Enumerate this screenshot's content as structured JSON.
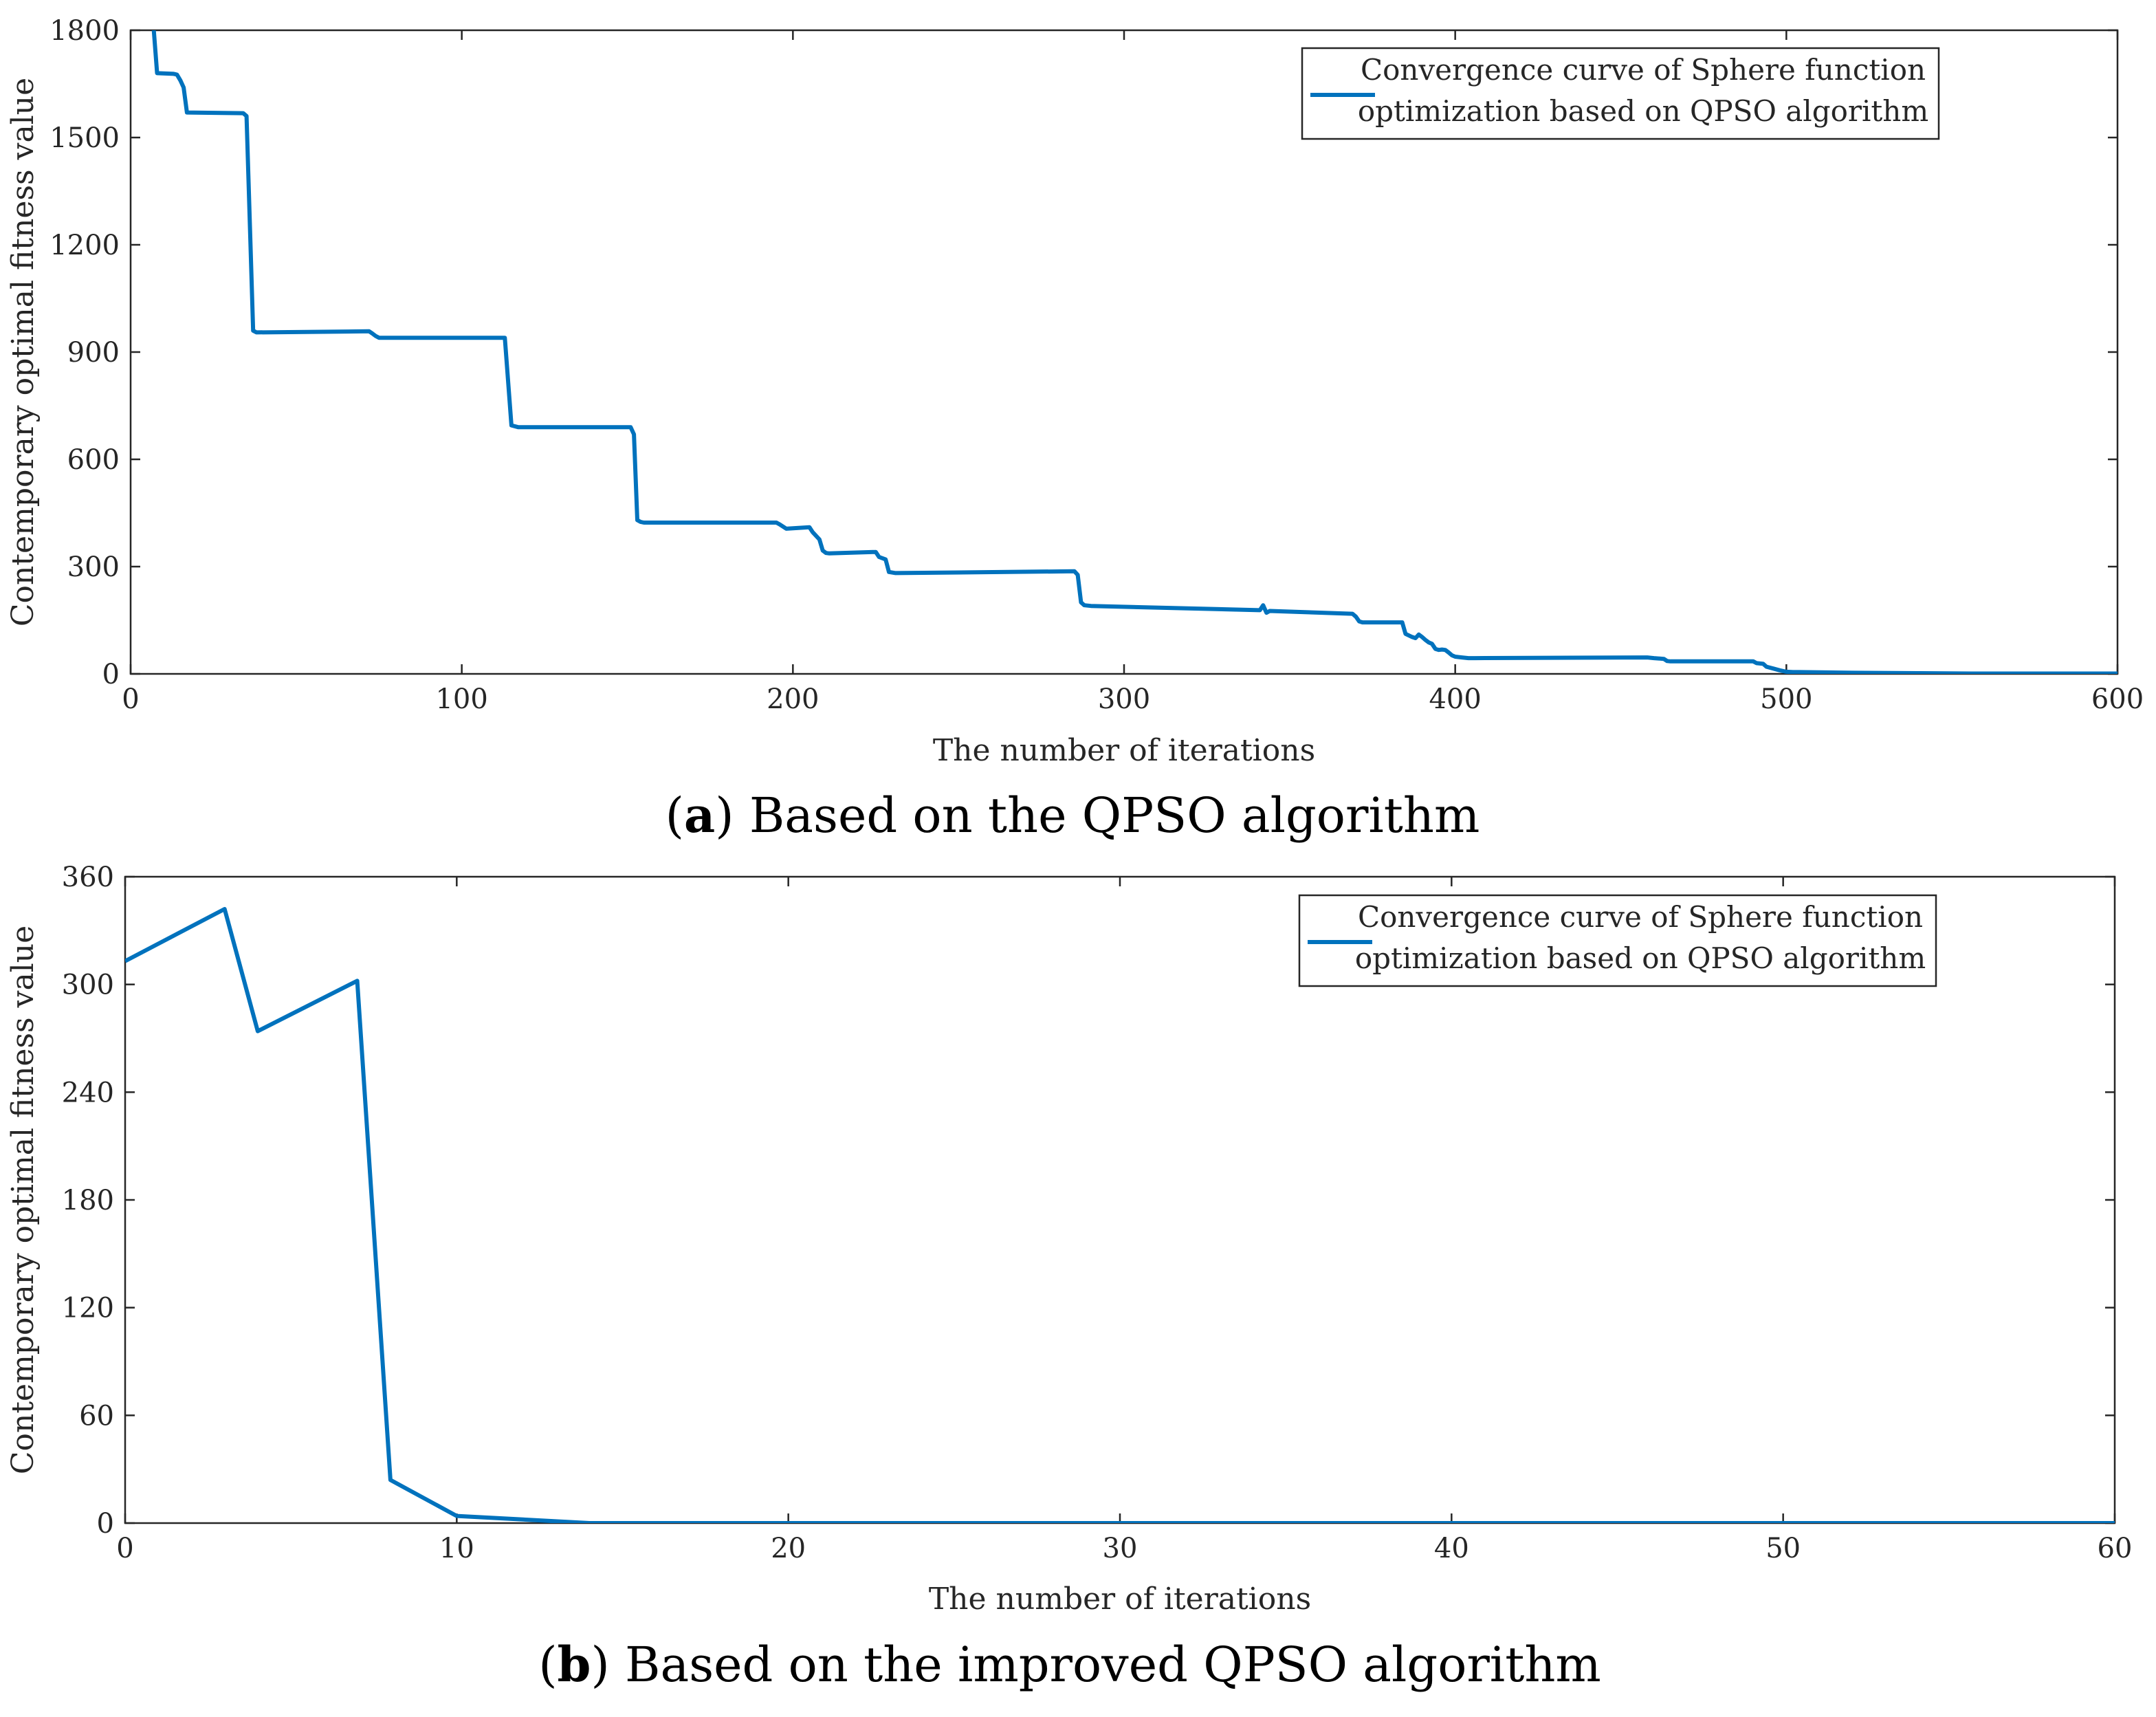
{
  "chart_data": [
    {
      "type": "line",
      "xlabel": "The number of iterations",
      "ylabel": "Contemporary optimal fitness value",
      "xlim": [
        0,
        600
      ],
      "ylim": [
        0,
        1800
      ],
      "xticks": [
        0,
        100,
        200,
        300,
        400,
        500,
        600
      ],
      "yticks": [
        0,
        300,
        600,
        900,
        1200,
        1500,
        1800
      ],
      "xtick_labels": [
        "0",
        "100",
        "200",
        "300",
        "400",
        "500",
        "600"
      ],
      "ytick_labels": [
        "0",
        "300",
        "600",
        "900",
        "1200",
        "1500",
        "1800"
      ],
      "legend_position": "top-right",
      "caption_letter": "a",
      "caption_text": ") Based on the QPSO algorithm",
      "caption_prefix": "(",
      "line_color": "#0072BD",
      "series": [
        {
          "name": "Convergence curve of Sphere function optimization based on QPSO algorithm",
          "legend_lines": [
            "Convergence curve of Sphere function",
            "optimization based on QPSO algorithm"
          ],
          "x": [
            7,
            8,
            13,
            14,
            15,
            16,
            17,
            34,
            35,
            37,
            38,
            72,
            73,
            74,
            75,
            113,
            115,
            117,
            151,
            152,
            153,
            154,
            155,
            195,
            196,
            197,
            198,
            205,
            206,
            208,
            209,
            210,
            211,
            225,
            226,
            228,
            229,
            231,
            285,
            286,
            287,
            288,
            290,
            341,
            342,
            343,
            344,
            369,
            370,
            371,
            372,
            384,
            385,
            387,
            388,
            389,
            390,
            391,
            392,
            393,
            394,
            395,
            396,
            397,
            398,
            399,
            400,
            402,
            404,
            406,
            458,
            460,
            463,
            464,
            465,
            490,
            491,
            493,
            494,
            496,
            498,
            500,
            502,
            504,
            520,
            540,
            556,
            570,
            600
          ],
          "y": [
            1800,
            1680,
            1678,
            1676,
            1660,
            1640,
            1570,
            1568,
            1560,
            960,
            955,
            958,
            952,
            945,
            940,
            940,
            695,
            690,
            690,
            670,
            430,
            425,
            423,
            423,
            418,
            412,
            406,
            410,
            396,
            376,
            345,
            338,
            337,
            341,
            327,
            320,
            285,
            282,
            287,
            277,
            200,
            192,
            190,
            178,
            192,
            171,
            176,
            168,
            160,
            147,
            144,
            144,
            112,
            103,
            100,
            110,
            103,
            95,
            88,
            84,
            70,
            67,
            68,
            67,
            60,
            52,
            48,
            46,
            44,
            44,
            46,
            44,
            42,
            36,
            35,
            35,
            30,
            28,
            20,
            15,
            10,
            6,
            5,
            5,
            3,
            2,
            1,
            1,
            1
          ]
        }
      ]
    },
    {
      "type": "line",
      "xlabel": "The number of iterations",
      "ylabel": "Contemporary optimal fitness value",
      "xlim": [
        0,
        60
      ],
      "ylim": [
        0,
        360
      ],
      "xticks": [
        0,
        10,
        20,
        30,
        40,
        50,
        60
      ],
      "yticks": [
        0,
        60,
        120,
        180,
        240,
        300,
        360
      ],
      "xtick_labels": [
        "0",
        "10",
        "20",
        "30",
        "40",
        "50",
        "60"
      ],
      "ytick_labels": [
        "0",
        "60",
        "120",
        "180",
        "240",
        "300",
        "360"
      ],
      "legend_position": "top-right",
      "caption_letter": "b",
      "caption_text": ") Based on the improved QPSO algorithm",
      "caption_prefix": "(",
      "line_color": "#0072BD",
      "series": [
        {
          "name": "Convergence curve of Sphere function optimization based on QPSO algorithm",
          "legend_lines": [
            "Convergence curve of Sphere function",
            "optimization based on QPSO algorithm"
          ],
          "x": [
            0,
            3,
            4,
            7,
            8,
            10,
            14,
            20,
            30,
            40,
            50,
            60
          ],
          "y": [
            313,
            342,
            274,
            302,
            24,
            4,
            0,
            0,
            0,
            0,
            0,
            0
          ]
        }
      ]
    }
  ]
}
